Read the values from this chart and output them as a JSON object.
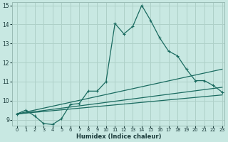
{
  "xlabel": "Humidex (Indice chaleur)",
  "bg_color": "#c8e8e2",
  "line_color": "#1a6b60",
  "grid_color": "#aed0c8",
  "xlim": [
    0,
    23
  ],
  "ylim": [
    9,
    15
  ],
  "yticks": [
    9,
    10,
    11,
    12,
    13,
    14,
    15
  ],
  "xticks": [
    0,
    1,
    2,
    3,
    4,
    5,
    6,
    7,
    8,
    9,
    10,
    11,
    12,
    13,
    14,
    15,
    16,
    17,
    18,
    19,
    20,
    21,
    22,
    23
  ],
  "main_x": [
    0,
    1,
    2,
    3,
    4,
    5,
    6,
    7,
    8,
    9,
    10,
    11,
    12,
    13,
    14,
    15,
    16,
    17,
    18,
    19,
    20,
    21,
    22,
    23
  ],
  "main_y": [
    9.3,
    9.5,
    9.2,
    8.8,
    8.75,
    9.05,
    9.8,
    9.85,
    10.5,
    10.5,
    11.0,
    14.05,
    13.5,
    13.9,
    15.0,
    14.2,
    13.3,
    12.6,
    12.35,
    11.65,
    11.05,
    11.05,
    10.8,
    10.45
  ],
  "line2_x": [
    0,
    23
  ],
  "line2_y": [
    9.3,
    11.65
  ],
  "line3_x": [
    0,
    23
  ],
  "line3_y": [
    9.3,
    10.7
  ],
  "line4_x": [
    0,
    23
  ],
  "line4_y": [
    9.3,
    10.3
  ]
}
